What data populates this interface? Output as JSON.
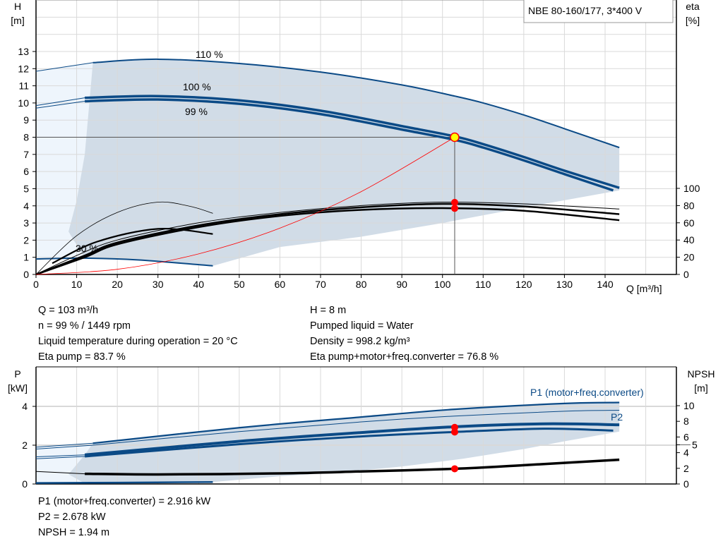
{
  "title_box": "NBE 80-160/177, 3*400 V",
  "colors": {
    "curve_blue": "#0b4a86",
    "shade": "#d1dce7",
    "shade_light": "#eef5fc",
    "system_curve": "#ff0000",
    "duty_point": "#ffff00",
    "marker": "#ff0000",
    "grid": "#d9d9d9"
  },
  "chart_data": [
    {
      "type": "line",
      "xlabel": "Q [m³/h]",
      "ylabel_left": [
        "H",
        "[m]"
      ],
      "ylabel_right": [
        "eta",
        "[%]"
      ],
      "xlim": [
        0,
        156
      ],
      "ylim_left": [
        0,
        16
      ],
      "ylim_right": [
        0,
        131
      ],
      "xticks": [
        0,
        10,
        20,
        30,
        40,
        50,
        60,
        70,
        80,
        90,
        100,
        110,
        120,
        130,
        140
      ],
      "yticks_left": [
        0,
        1,
        2,
        3,
        4,
        5,
        6,
        7,
        8,
        9,
        10,
        11,
        12,
        13
      ],
      "yticks_right": [
        0,
        20,
        40,
        60,
        80,
        100
      ],
      "grid": true,
      "head_curves": [
        {
          "name": "110 %",
          "points": [
            [
              0,
              11.85
            ],
            [
              14,
              12.35
            ],
            [
              30,
              12.55
            ],
            [
              50,
              12.3
            ],
            [
              70,
              11.8
            ],
            [
              90,
              11.05
            ],
            [
              103,
              10.4
            ],
            [
              110,
              10.0
            ],
            [
              120,
              9.3
            ],
            [
              130,
              8.5
            ],
            [
              143.5,
              7.4
            ]
          ]
        },
        {
          "name": "100 %",
          "points": [
            [
              0,
              9.85
            ],
            [
              12,
              10.3
            ],
            [
              30,
              10.4
            ],
            [
              50,
              10.15
            ],
            [
              70,
              9.55
            ],
            [
              90,
              8.65
            ],
            [
              103,
              8.05
            ],
            [
              110,
              7.6
            ],
            [
              120,
              6.85
            ],
            [
              130,
              6.05
            ],
            [
              143.5,
              5.05
            ]
          ]
        },
        {
          "name": "99 %",
          "points": [
            [
              0,
              9.7
            ],
            [
              12,
              10.1
            ],
            [
              30,
              10.2
            ],
            [
              50,
              9.95
            ],
            [
              70,
              9.35
            ],
            [
              90,
              8.45
            ],
            [
              103,
              7.85
            ],
            [
              110,
              7.4
            ],
            [
              120,
              6.65
            ],
            [
              130,
              5.85
            ],
            [
              142,
              4.9
            ]
          ]
        },
        {
          "name": "30 %",
          "points": [
            [
              0,
              0.9
            ],
            [
              12,
              0.95
            ],
            [
              25,
              0.85
            ],
            [
              43.5,
              0.5
            ]
          ]
        }
      ],
      "eta_curves": [
        {
          "points": [
            [
              0,
              0
            ],
            [
              10,
              22
            ],
            [
              20,
              40
            ],
            [
              40,
              60
            ],
            [
              60,
              72
            ],
            [
              80,
              80
            ],
            [
              100,
              84
            ],
            [
              120,
              82
            ],
            [
              143.5,
              76
            ]
          ]
        },
        {
          "points": [
            [
              0,
              0
            ],
            [
              12,
              22
            ],
            [
              20,
              37
            ],
            [
              40,
              57
            ],
            [
              60,
              70
            ],
            [
              80,
              78
            ],
            [
              100,
              82
            ],
            [
              120,
              79
            ],
            [
              143.5,
              70
            ]
          ]
        },
        {
          "points": [
            [
              0,
              0
            ],
            [
              12,
              20
            ],
            [
              20,
              35
            ],
            [
              40,
              55
            ],
            [
              60,
              68
            ],
            [
              80,
              75
            ],
            [
              100,
              77
            ],
            [
              120,
              74
            ],
            [
              143.5,
              63
            ]
          ]
        },
        {
          "points": [
            [
              4,
              13
            ],
            [
              15,
              38
            ],
            [
              30,
              53
            ],
            [
              43.5,
              47
            ]
          ]
        },
        {
          "points": [
            [
              0,
              0
            ],
            [
              10,
              45
            ],
            [
              20,
              72
            ],
            [
              30,
              84
            ],
            [
              38,
              79
            ],
            [
              43.5,
              71
            ]
          ]
        }
      ],
      "system_curve": {
        "points": [
          [
            0,
            0
          ],
          [
            20,
            0.3
          ],
          [
            40,
            1.2
          ],
          [
            60,
            2.7
          ],
          [
            80,
            4.83
          ],
          [
            103,
            8
          ]
        ]
      },
      "duty_point": {
        "Q": 103,
        "H": 8
      },
      "eta_markers": [
        83.7,
        76.8
      ],
      "working_area_upper_left": [
        [
          14,
          12.35
        ],
        [
          12,
          10.3
        ],
        [
          8,
          6
        ],
        [
          4,
          2.5
        ],
        [
          0,
          0
        ]
      ]
    },
    {
      "type": "line",
      "xlim": [
        0,
        156
      ],
      "ylabel_left": [
        "P",
        "[kW]"
      ],
      "ylabel_right": [
        "NPSH",
        "[m]"
      ],
      "ylim_left": [
        0,
        6
      ],
      "ylim_right": [
        0,
        15
      ],
      "yticks_left": [
        0,
        2,
        4
      ],
      "yticks_right": [
        0,
        2,
        4,
        5,
        6,
        8,
        10
      ],
      "grid": true,
      "legend": [
        "P1 (motor+freq.converter)",
        "P2"
      ],
      "power_curves": [
        {
          "name": "P1 (motor+freq.converter)",
          "points": [
            [
              0,
              1.9
            ],
            [
              14,
              2.1
            ],
            [
              50,
              2.9
            ],
            [
              80,
              3.45
            ],
            [
              103,
              3.85
            ],
            [
              130,
              4.15
            ],
            [
              143.5,
              4.2
            ]
          ],
          "w": 2.2
        },
        {
          "name": "P2",
          "points": [
            [
              0,
              1.8
            ],
            [
              14,
              2.0
            ],
            [
              50,
              2.7
            ],
            [
              80,
              3.2
            ],
            [
              103,
              3.5
            ],
            [
              130,
              3.75
            ],
            [
              143.5,
              3.8
            ]
          ],
          "w": 1
        },
        {
          "points": [
            [
              0,
              1.4
            ],
            [
              12,
              1.5
            ],
            [
              50,
              2.2
            ],
            [
              80,
              2.65
            ],
            [
              103,
              2.95
            ],
            [
              125,
              3.1
            ],
            [
              143.5,
              3.05
            ]
          ],
          "w": 4
        },
        {
          "points": [
            [
              0,
              1.3
            ],
            [
              12,
              1.42
            ],
            [
              50,
              2.05
            ],
            [
              80,
              2.45
            ],
            [
              103,
              2.68
            ],
            [
              125,
              2.85
            ],
            [
              142,
              2.75
            ]
          ],
          "w": 3
        },
        {
          "points": [
            [
              0,
              0.05
            ],
            [
              20,
              0.07
            ],
            [
              43.5,
              0.1
            ]
          ],
          "w": 2.5
        }
      ],
      "npsh_curve": {
        "points": [
          [
            0,
            1.6
          ],
          [
            12,
            1.3
          ],
          [
            30,
            1.22
          ],
          [
            60,
            1.35
          ],
          [
            80,
            1.6
          ],
          [
            103,
            1.94
          ],
          [
            120,
            2.4
          ],
          [
            143.5,
            3.1
          ]
        ]
      },
      "markers_power": [
        2.916,
        2.678
      ],
      "marker_npsh": 1.94,
      "working_area_lower": [
        [
          143.5,
          2.7
        ],
        [
          130,
          2.2
        ],
        [
          120,
          1.8
        ],
        [
          105,
          1.3
        ],
        [
          90,
          0.9
        ],
        [
          75,
          0.6
        ],
        [
          60,
          0.4
        ],
        [
          43.5,
          0.1
        ]
      ]
    }
  ],
  "readout_top": {
    "left": [
      "Q = 103 m³/h",
      "n = 99 % / 1449 rpm",
      "Liquid temperature during operation = 20 °C",
      "Eta pump = 83.7 %"
    ],
    "right": [
      "H = 8 m",
      "Pumped liquid = Water",
      "Density = 998.2 kg/m³",
      "Eta pump+motor+freq.converter = 76.8 %"
    ]
  },
  "readout_bottom": [
    "P1 (motor+freq.converter) = 2.916 kW",
    "P2 = 2.678 kW",
    "NPSH = 1.94 m"
  ]
}
